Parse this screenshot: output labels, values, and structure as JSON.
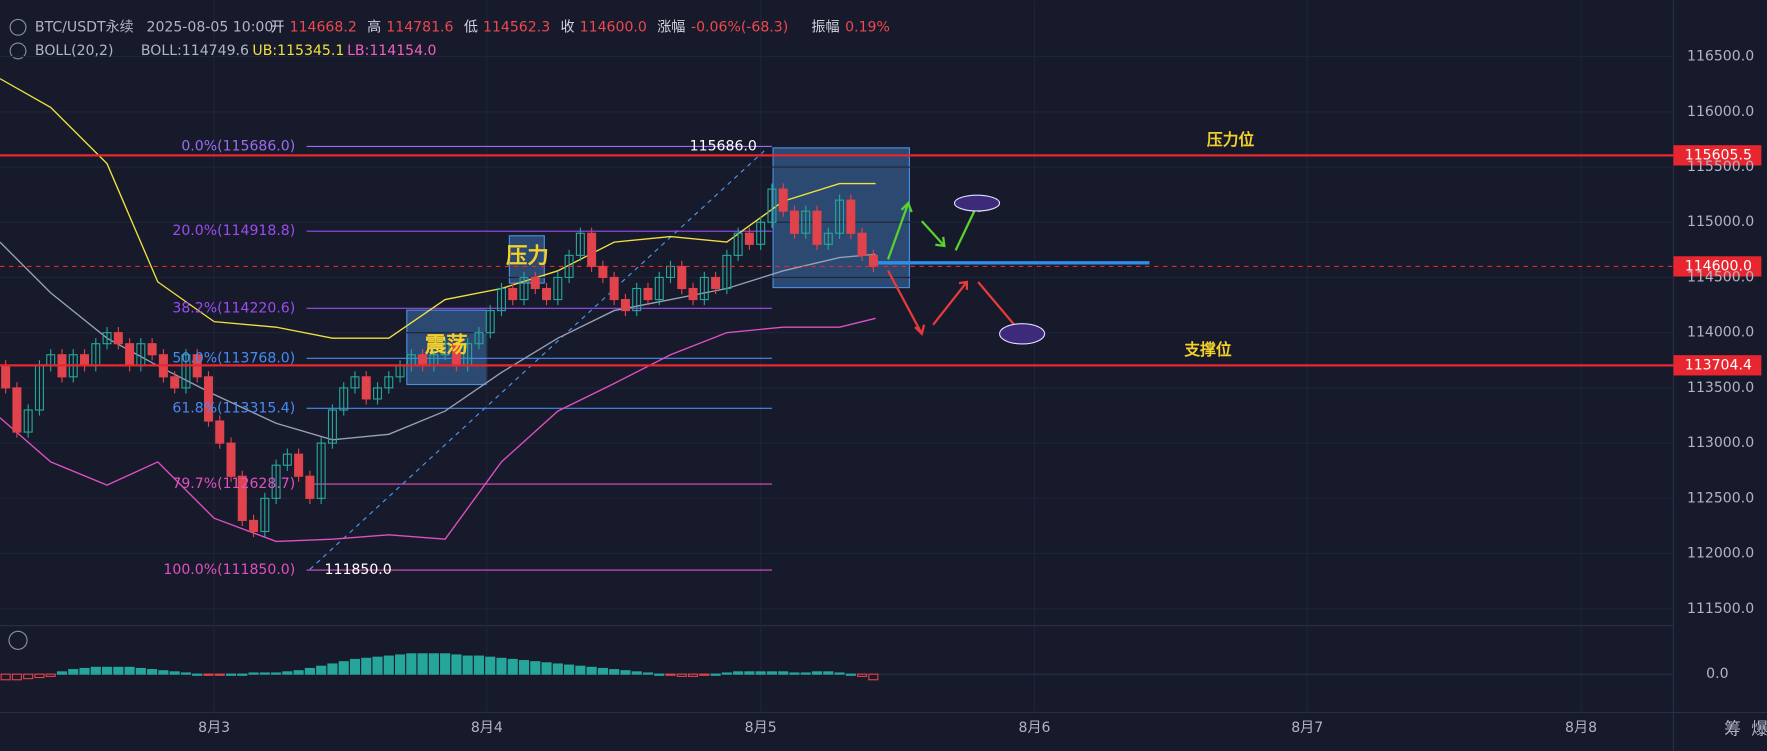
{
  "header": {
    "symbol": "BTC/USDT永续",
    "datetime": "2025-08-05 10:00",
    "fields": [
      {
        "k": "开",
        "v": "114668.2"
      },
      {
        "k": "高",
        "v": "114781.6"
      },
      {
        "k": "低",
        "v": "114562.3"
      },
      {
        "k": "收",
        "v": "114600.0"
      },
      {
        "k": "涨幅",
        "v": "-0.06%(-68.3)"
      },
      {
        "k": "振幅",
        "v": "0.19%"
      }
    ]
  },
  "indicator": {
    "name": "BOLL(20,2)",
    "mid": "BOLL:114749.6",
    "upper": "UB:115345.1",
    "lower": "LB:114154.0"
  },
  "chart_data": {
    "type": "candlestick",
    "ylim": [
      111347,
      117010
    ],
    "yticks": [
      {
        "value": 116500,
        "label": "116500.0"
      },
      {
        "value": 116000,
        "label": "116000.0"
      },
      {
        "value": 115500,
        "label": "115500.0"
      },
      {
        "value": 115000,
        "label": "115000.0"
      },
      {
        "value": 114500,
        "label": "114500.0"
      },
      {
        "value": 114000,
        "label": "114000.0"
      },
      {
        "value": 113500,
        "label": "113500.0"
      },
      {
        "value": 113000,
        "label": "113000.0"
      },
      {
        "value": 112500,
        "label": "112500.0"
      },
      {
        "value": 112000,
        "label": "112000.0"
      },
      {
        "value": 111500,
        "label": "111500.0"
      }
    ],
    "xticks": [
      {
        "value": 18.5,
        "label": "8月3"
      },
      {
        "value": 42.7,
        "label": "8月4"
      },
      {
        "value": 67,
        "label": "8月5"
      },
      {
        "value": 91.3,
        "label": "8月6"
      },
      {
        "value": 115.5,
        "label": "8月7"
      },
      {
        "value": 139.8,
        "label": "8月8"
      }
    ],
    "closes": [
      113500,
      113100,
      113300,
      113700,
      113800,
      113600,
      113800,
      113700,
      113900,
      114000,
      113900,
      113700,
      113900,
      113800,
      113600,
      113500,
      113800,
      113600,
      113200,
      113000,
      112700,
      112300,
      112200,
      112500,
      112800,
      112900,
      112700,
      112500,
      113000,
      113300,
      113500,
      113600,
      113400,
      113500,
      113600,
      113700,
      113800,
      113700,
      113800,
      113900,
      113700,
      113900,
      114000,
      114200,
      114400,
      114300,
      114500,
      114400,
      114300,
      114500,
      114700,
      114900,
      114600,
      114500,
      114300,
      114200,
      114400,
      114300,
      114500,
      114600,
      114400,
      114300,
      114500,
      114400,
      114700,
      114900,
      114800,
      115000,
      115300,
      115100,
      114900,
      115100,
      114800,
      114900,
      115200,
      114900,
      114700,
      114600
    ],
    "band_x": [
      -0.5,
      4,
      9,
      13.5,
      18.5,
      24,
      29,
      34,
      39,
      44,
      49,
      54,
      59,
      64,
      69,
      74,
      77.2
    ],
    "band_upper": [
      116300,
      116040,
      115530,
      114460,
      114100,
      114050,
      113950,
      113950,
      114300,
      114400,
      114560,
      114820,
      114870,
      114820,
      115190,
      115350,
      115350
    ],
    "band_mid": [
      114820,
      114360,
      113950,
      113700,
      113440,
      113180,
      113030,
      113080,
      113290,
      113640,
      113950,
      114200,
      114300,
      114400,
      114560,
      114680,
      114710
    ],
    "band_lower": [
      113230,
      112830,
      112620,
      112830,
      112320,
      112110,
      112130,
      112170,
      112130,
      112830,
      113290,
      113540,
      113800,
      114000,
      114050,
      114050,
      114130
    ],
    "macd_hist": [
      -5,
      -5,
      -4,
      -3,
      -2,
      2,
      4,
      5,
      6,
      6,
      6,
      6,
      5,
      4,
      3,
      2,
      1,
      0,
      -1,
      -1,
      0,
      0,
      1,
      1,
      1,
      2,
      3,
      5,
      7,
      9,
      11,
      13,
      14,
      15,
      16,
      17,
      18,
      18,
      18,
      18,
      17,
      16,
      16,
      15,
      14,
      13,
      12,
      11,
      10,
      9,
      8,
      7,
      6,
      5,
      4,
      3,
      2,
      1,
      0,
      -1,
      -2,
      -2,
      -1,
      0,
      1,
      2,
      2,
      2,
      2,
      2,
      1,
      1,
      2,
      2,
      1,
      0,
      -2,
      -5
    ],
    "macd_zero": {
      "value": 0,
      "label": "0.0"
    },
    "fib": [
      {
        "value": 115686,
        "label": "0.0%(115686.0)",
        "color": "#9c6cf0"
      },
      {
        "value": 114918.8,
        "label": "20.0%(114918.8)",
        "color": "#9c4cf0"
      },
      {
        "value": 114220.6,
        "label": "38.2%(114220.6)",
        "color": "#9c4cf0"
      },
      {
        "value": 113768,
        "label": "50.0%(113768.0)",
        "color": "#4a8af0"
      },
      {
        "value": 113315.4,
        "label": "61.8%(113315.4)",
        "color": "#4a8af0"
      },
      {
        "value": 112628.7,
        "label": "79.7%(112628.7)",
        "color": "#e050c0"
      },
      {
        "value": 111850,
        "label": "100.0%(111850.0)",
        "color": "#e050c0"
      }
    ],
    "levels": [
      {
        "value": 115605.5,
        "label": "115605.5",
        "name": "压力位"
      },
      {
        "value": 113704.4,
        "label": "113704.4",
        "name": "支撑位"
      }
    ],
    "current": {
      "value": 114600,
      "label": "114600.0"
    },
    "swing_high": {
      "value": 115686,
      "label": "115686.0"
    },
    "swing_low": {
      "value": 111850,
      "label": "111850.0"
    },
    "boxes": [
      "震荡",
      "压力"
    ]
  },
  "toolbar": [
    "筹",
    "爆"
  ]
}
